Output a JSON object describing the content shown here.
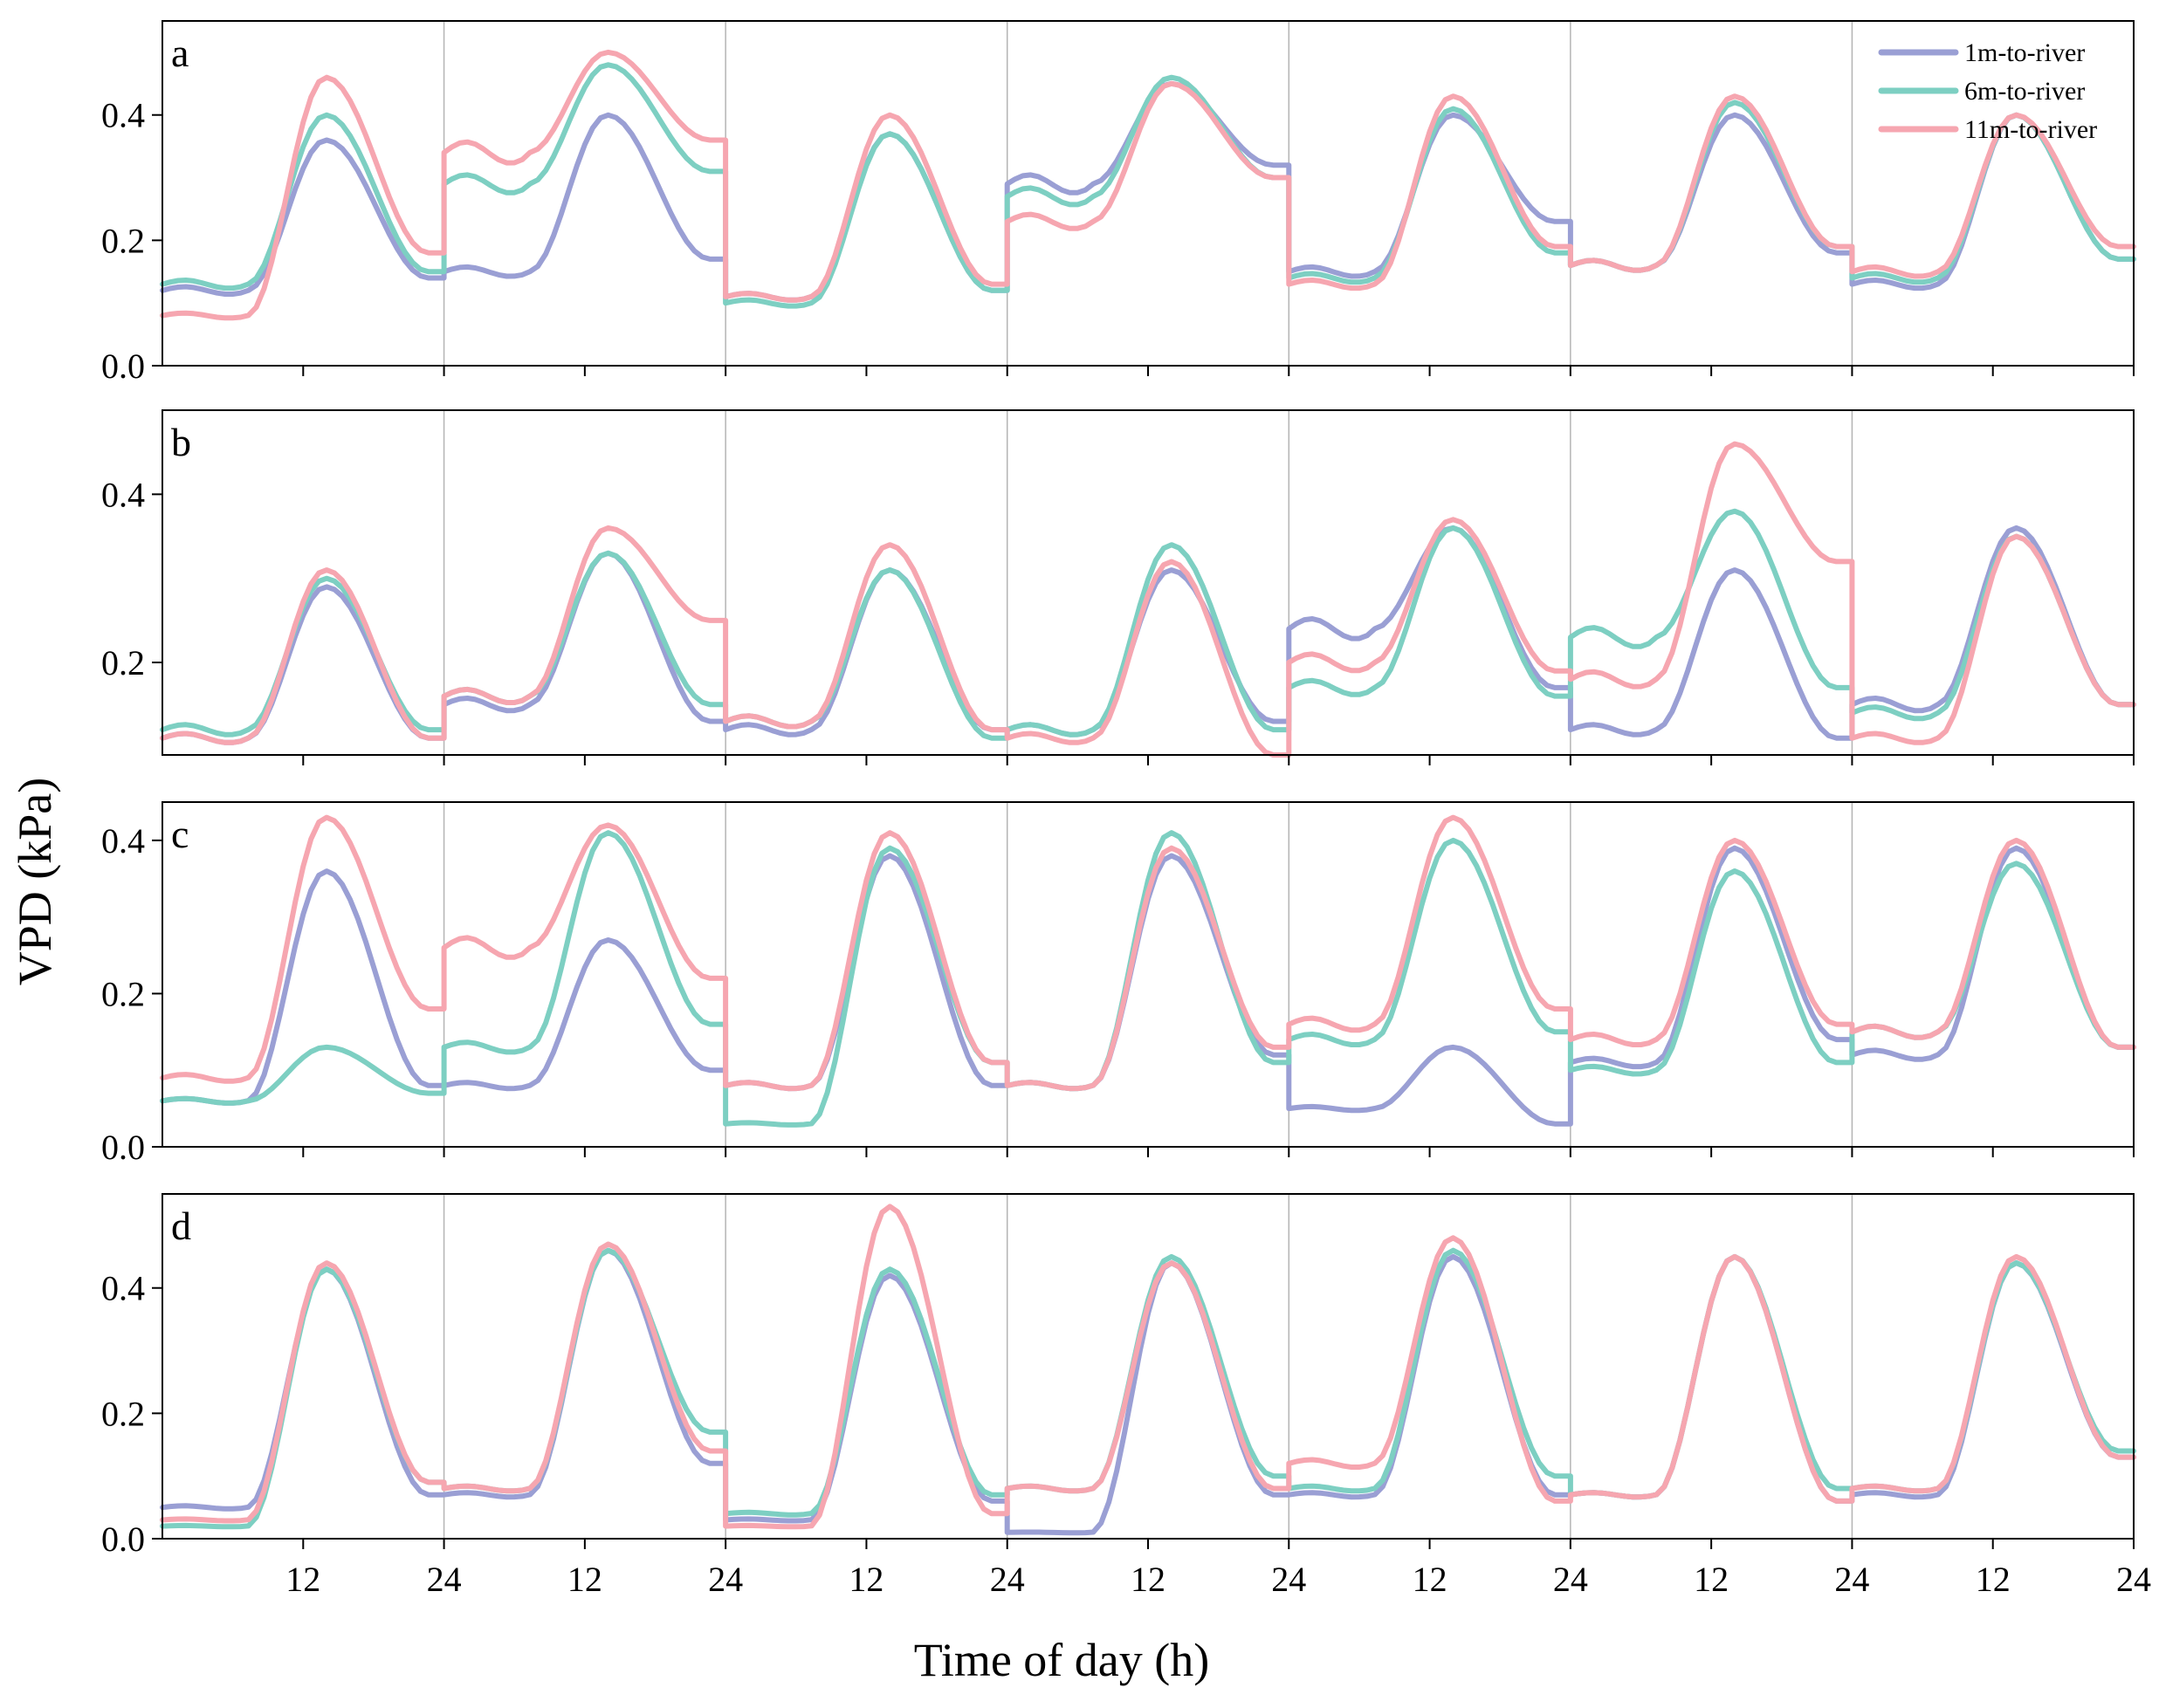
{
  "chart_data": {
    "type": "line",
    "ylabel": "VPD (kPa)",
    "xlabel": "Time of day (h)",
    "x_tick_labels": [
      "12",
      "24",
      "12",
      "24",
      "12",
      "24",
      "12",
      "24",
      "12",
      "24",
      "12",
      "24",
      "12",
      "24"
    ],
    "days": 7,
    "x_hours_per_day": 24,
    "legend": [
      {
        "name": "1m-to-river",
        "color": "#9a9fd4"
      },
      {
        "name": "6m-to-river",
        "color": "#7dcfc2"
      },
      {
        "name": "11m-to-river",
        "color": "#f6a6b0"
      }
    ],
    "panels": [
      {
        "label": "a",
        "ylim": [
          0.0,
          0.55
        ],
        "yticks": [
          0.0,
          0.2,
          0.4
        ],
        "ytick_labels": [
          "0.0",
          "0.2",
          "0.4"
        ],
        "series": {
          "1m-to-river": [
            [
              0.12,
              0.36,
              0.14
            ],
            [
              0.15,
              0.4,
              0.17
            ],
            [
              0.11,
              0.37,
              0.12
            ],
            [
              0.29,
              0.45,
              0.32
            ],
            [
              0.15,
              0.4,
              0.23
            ],
            [
              0.16,
              0.4,
              0.18
            ],
            [
              0.13,
              0.4,
              0.17
            ]
          ],
          "6m-to-river": [
            [
              0.13,
              0.4,
              0.15
            ],
            [
              0.29,
              0.48,
              0.31
            ],
            [
              0.1,
              0.37,
              0.12
            ],
            [
              0.27,
              0.46,
              0.3
            ],
            [
              0.14,
              0.41,
              0.18
            ],
            [
              0.16,
              0.42,
              0.19
            ],
            [
              0.14,
              0.4,
              0.17
            ]
          ],
          "11m-to-river": [
            [
              0.08,
              0.46,
              0.18
            ],
            [
              0.34,
              0.5,
              0.36
            ],
            [
              0.11,
              0.4,
              0.13
            ],
            [
              0.23,
              0.45,
              0.3
            ],
            [
              0.13,
              0.43,
              0.19
            ],
            [
              0.16,
              0.43,
              0.19
            ],
            [
              0.15,
              0.4,
              0.19
            ]
          ]
        }
      },
      {
        "label": "b",
        "ylim": [
          0.09,
          0.5
        ],
        "yticks": [
          0.2,
          0.4
        ],
        "ytick_labels": [
          "0.2",
          "0.4"
        ],
        "series": {
          "1m-to-river": [
            [
              0.11,
              0.29,
              0.11
            ],
            [
              0.15,
              0.33,
              0.13
            ],
            [
              0.12,
              0.31,
              0.12
            ],
            [
              0.12,
              0.31,
              0.13
            ],
            [
              0.24,
              0.36,
              0.17
            ],
            [
              0.12,
              0.31,
              0.11
            ],
            [
              0.15,
              0.36,
              0.15
            ]
          ],
          "6m-to-river": [
            [
              0.12,
              0.3,
              0.12
            ],
            [
              0.16,
              0.33,
              0.15
            ],
            [
              0.13,
              0.31,
              0.11
            ],
            [
              0.12,
              0.34,
              0.12
            ],
            [
              0.17,
              0.36,
              0.16
            ],
            [
              0.23,
              0.38,
              0.17
            ],
            [
              0.14,
              0.35,
              0.15
            ]
          ],
          "11m-to-river": [
            [
              0.11,
              0.31,
              0.11
            ],
            [
              0.16,
              0.36,
              0.25
            ],
            [
              0.13,
              0.34,
              0.12
            ],
            [
              0.11,
              0.32,
              0.09
            ],
            [
              0.2,
              0.37,
              0.19
            ],
            [
              0.18,
              0.46,
              0.32
            ],
            [
              0.11,
              0.35,
              0.15
            ]
          ]
        }
      },
      {
        "label": "c",
        "ylim": [
          0.0,
          0.45
        ],
        "yticks": [
          0.0,
          0.2,
          0.4
        ],
        "ytick_labels": [
          "0.0",
          "0.2",
          "0.4"
        ],
        "series": {
          "1m-to-river": [
            [
              0.06,
              0.36,
              0.08
            ],
            [
              0.08,
              0.27,
              0.1
            ],
            [
              0.08,
              0.38,
              0.08
            ],
            [
              0.08,
              0.38,
              0.12
            ],
            [
              0.05,
              0.13,
              0.03
            ],
            [
              0.11,
              0.39,
              0.14
            ],
            [
              0.12,
              0.39,
              0.13
            ]
          ],
          "6m-to-river": [
            [
              0.06,
              0.13,
              0.07
            ],
            [
              0.13,
              0.41,
              0.16
            ],
            [
              0.03,
              0.39,
              0.11
            ],
            [
              0.08,
              0.41,
              0.11
            ],
            [
              0.14,
              0.4,
              0.15
            ],
            [
              0.1,
              0.36,
              0.11
            ],
            [
              0.15,
              0.37,
              0.13
            ]
          ],
          "11m-to-river": [
            [
              0.09,
              0.43,
              0.18
            ],
            [
              0.26,
              0.42,
              0.22
            ],
            [
              0.08,
              0.41,
              0.11
            ],
            [
              0.08,
              0.39,
              0.13
            ],
            [
              0.16,
              0.43,
              0.18
            ],
            [
              0.14,
              0.4,
              0.16
            ],
            [
              0.15,
              0.4,
              0.13
            ]
          ]
        }
      },
      {
        "label": "d",
        "ylim": [
          0.0,
          0.55
        ],
        "yticks": [
          0.0,
          0.2,
          0.4
        ],
        "ytick_labels": [
          "0.0",
          "0.2",
          "0.4"
        ],
        "series": {
          "1m-to-river": [
            [
              0.05,
              0.43,
              0.07
            ],
            [
              0.07,
              0.46,
              0.12
            ],
            [
              0.03,
              0.42,
              0.06
            ],
            [
              0.01,
              0.44,
              0.07
            ],
            [
              0.07,
              0.45,
              0.07
            ],
            [
              0.07,
              0.45,
              0.06
            ],
            [
              0.07,
              0.44,
              0.13
            ]
          ],
          "6m-to-river": [
            [
              0.02,
              0.43,
              0.09
            ],
            [
              0.08,
              0.46,
              0.17
            ],
            [
              0.04,
              0.43,
              0.07
            ],
            [
              0.08,
              0.45,
              0.1
            ],
            [
              0.08,
              0.46,
              0.1
            ],
            [
              0.07,
              0.45,
              0.08
            ],
            [
              0.08,
              0.44,
              0.14
            ]
          ],
          "11m-to-river": [
            [
              0.03,
              0.44,
              0.09
            ],
            [
              0.08,
              0.47,
              0.14
            ],
            [
              0.02,
              0.53,
              0.04
            ],
            [
              0.08,
              0.44,
              0.08
            ],
            [
              0.12,
              0.48,
              0.06
            ],
            [
              0.07,
              0.45,
              0.06
            ],
            [
              0.08,
              0.45,
              0.13
            ]
          ]
        }
      }
    ]
  }
}
